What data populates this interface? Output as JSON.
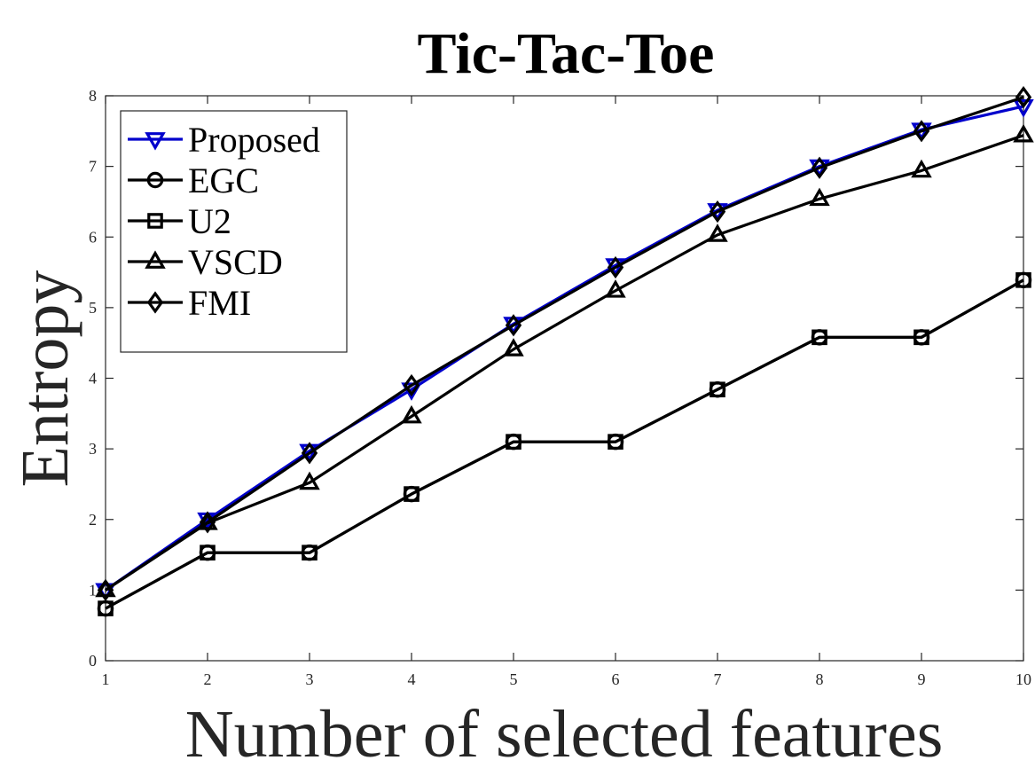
{
  "chart_data": {
    "type": "line",
    "title": "Tic-Tac-Toe",
    "xlabel": "Number of selected features",
    "ylabel": "Entropy",
    "x": [
      1,
      2,
      3,
      4,
      5,
      6,
      7,
      8,
      9,
      10
    ],
    "xlim": [
      1,
      10
    ],
    "ylim": [
      0,
      8
    ],
    "xticks": [
      "1",
      "2",
      "3",
      "4",
      "5",
      "6",
      "7",
      "8",
      "9",
      "10"
    ],
    "yticks": [
      "0",
      "1",
      "2",
      "3",
      "4",
      "5",
      "6",
      "7",
      "8"
    ],
    "grid": false,
    "legend_position": "top-left",
    "series": [
      {
        "name": "Proposed",
        "marker": "triangle-down",
        "color": "#0000cc",
        "values": [
          1.0,
          2.0,
          2.97,
          3.84,
          4.77,
          5.6,
          6.38,
          7.0,
          7.52,
          7.85
        ]
      },
      {
        "name": "EGC",
        "marker": "circle",
        "color": "#000000",
        "values": [
          0.74,
          1.53,
          1.53,
          2.36,
          3.1,
          3.1,
          3.84,
          4.58,
          4.58,
          5.39
        ]
      },
      {
        "name": "U2",
        "marker": "square",
        "color": "#000000",
        "values": [
          0.74,
          1.53,
          1.53,
          2.36,
          3.1,
          3.1,
          3.84,
          4.58,
          4.58,
          5.39
        ]
      },
      {
        "name": "VSCD",
        "marker": "triangle-up",
        "color": "#000000",
        "values": [
          1.0,
          1.95,
          2.52,
          3.46,
          4.41,
          5.24,
          6.03,
          6.54,
          6.94,
          7.44
        ]
      },
      {
        "name": "FMI",
        "marker": "diamond",
        "color": "#000000",
        "values": [
          1.0,
          1.96,
          2.94,
          3.9,
          4.75,
          5.57,
          6.36,
          6.98,
          7.5,
          7.98
        ]
      }
    ]
  }
}
